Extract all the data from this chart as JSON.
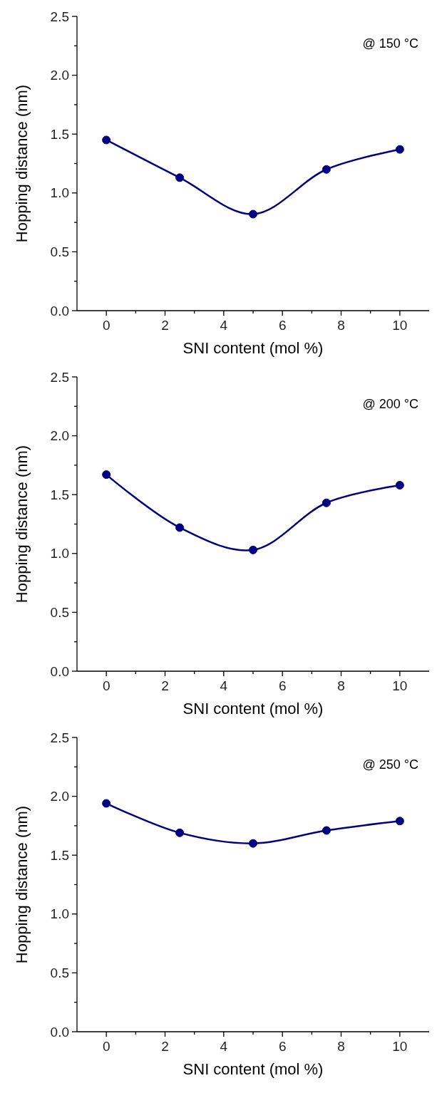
{
  "chart_data": [
    {
      "type": "line",
      "xlabel": "SNI content (mol %)",
      "ylabel": "Hopping distance (nm)",
      "annotations": [
        "@ 150 °C"
      ],
      "x": [
        0,
        2.5,
        5,
        7.5,
        10
      ],
      "series": [
        {
          "color": "#000080",
          "values": [
            1.45,
            1.13,
            0.82,
            1.2,
            1.37
          ]
        }
      ],
      "xlim": [
        -1,
        11
      ],
      "ylim": [
        0,
        2.5
      ],
      "xticks": [
        0,
        {
          "value": 1,
          "label": null
        },
        2,
        {
          "value": 3,
          "label": null
        },
        4,
        {
          "value": 5,
          "label": null
        },
        6,
        {
          "value": 7,
          "label": null
        },
        8,
        {
          "value": 9,
          "label": null
        },
        10
      ],
      "yticks": [
        {
          "value": 0,
          "label": "0.0"
        },
        {
          "value": 0.25,
          "label": null
        },
        {
          "value": 0.5,
          "label": "0.5"
        },
        {
          "value": 0.75,
          "label": null
        },
        {
          "value": 1,
          "label": "1.0"
        },
        {
          "value": 1.25,
          "label": null
        },
        {
          "value": 1.5,
          "label": "1.5"
        },
        {
          "value": 1.75,
          "label": null
        },
        {
          "value": 2,
          "label": "2.0"
        },
        {
          "value": 2.25,
          "label": null
        },
        {
          "value": 2.5,
          "label": "2.5"
        }
      ],
      "marker": "circle",
      "line_style": "solid"
    },
    {
      "type": "line",
      "xlabel": "SNI content (mol %)",
      "ylabel": "Hopping distance (nm)",
      "annotations": [
        "@ 200 °C"
      ],
      "x": [
        0,
        2.5,
        5,
        7.5,
        10
      ],
      "series": [
        {
          "color": "#000080",
          "values": [
            1.67,
            1.22,
            1.03,
            1.43,
            1.58
          ]
        }
      ],
      "xlim": [
        -1,
        11
      ],
      "ylim": [
        0,
        2.5
      ],
      "xticks": [
        0,
        {
          "value": 1,
          "label": null
        },
        2,
        {
          "value": 3,
          "label": null
        },
        4,
        {
          "value": 5,
          "label": null
        },
        6,
        {
          "value": 7,
          "label": null
        },
        8,
        {
          "value": 9,
          "label": null
        },
        10
      ],
      "yticks": [
        {
          "value": 0,
          "label": "0.0"
        },
        {
          "value": 0.25,
          "label": null
        },
        {
          "value": 0.5,
          "label": "0.5"
        },
        {
          "value": 0.75,
          "label": null
        },
        {
          "value": 1,
          "label": "1.0"
        },
        {
          "value": 1.25,
          "label": null
        },
        {
          "value": 1.5,
          "label": "1.5"
        },
        {
          "value": 1.75,
          "label": null
        },
        {
          "value": 2,
          "label": "2.0"
        },
        {
          "value": 2.25,
          "label": null
        },
        {
          "value": 2.5,
          "label": "2.5"
        }
      ],
      "marker": "circle",
      "line_style": "solid"
    },
    {
      "type": "line",
      "xlabel": "SNI content (mol %)",
      "ylabel": "Hopping distance (nm)",
      "annotations": [
        "@ 250 °C"
      ],
      "x": [
        0,
        2.5,
        5,
        7.5,
        10
      ],
      "series": [
        {
          "color": "#000080",
          "values": [
            1.94,
            1.69,
            1.6,
            1.71,
            1.79
          ]
        }
      ],
      "xlim": [
        -1,
        11
      ],
      "ylim": [
        0,
        2.5
      ],
      "xticks": [
        0,
        {
          "value": 1,
          "label": null
        },
        2,
        {
          "value": 3,
          "label": null
        },
        4,
        {
          "value": 5,
          "label": null
        },
        6,
        {
          "value": 7,
          "label": null
        },
        8,
        {
          "value": 9,
          "label": null
        },
        10
      ],
      "yticks": [
        {
          "value": 0,
          "label": "0.0"
        },
        {
          "value": 0.25,
          "label": null
        },
        {
          "value": 0.5,
          "label": "0.5"
        },
        {
          "value": 0.75,
          "label": null
        },
        {
          "value": 1,
          "label": "1.0"
        },
        {
          "value": 1.25,
          "label": null
        },
        {
          "value": 1.5,
          "label": "1.5"
        },
        {
          "value": 1.75,
          "label": null
        },
        {
          "value": 2,
          "label": "2.0"
        },
        {
          "value": 2.25,
          "label": null
        },
        {
          "value": 2.5,
          "label": "2.5"
        }
      ],
      "marker": "circle",
      "line_style": "solid"
    }
  ]
}
